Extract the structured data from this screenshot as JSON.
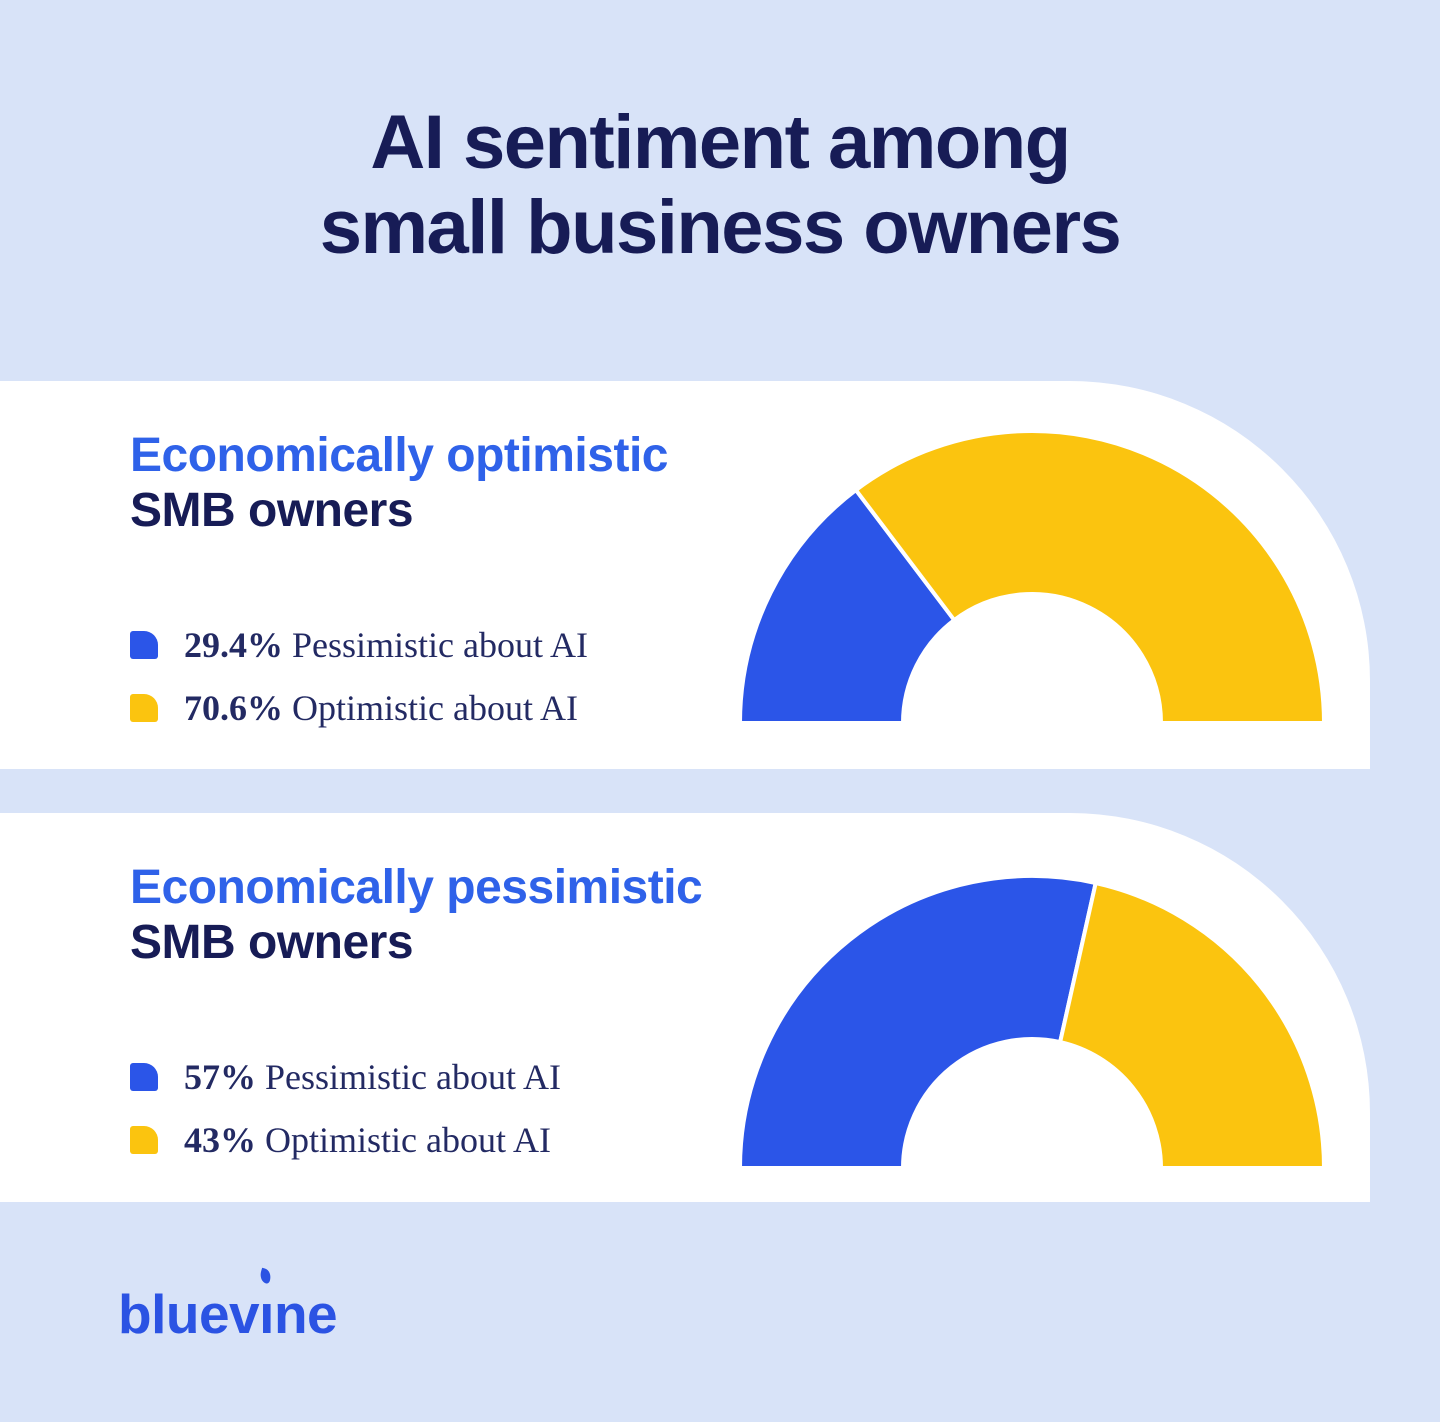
{
  "page": {
    "title_line1": "AI sentiment among",
    "title_line2": "small business owners"
  },
  "colors": {
    "background": "#d8e3f8",
    "card": "#ffffff",
    "navy": "#171c56",
    "legend_text": "#232a63",
    "heading_accent_blue": "#2f62e9",
    "brand_blue": "#2b55e8",
    "brand_yellow": "#fbc40f",
    "logo_blue": "#2b53e3"
  },
  "cards": [
    {
      "heading_accent": "Economically optimistic",
      "heading_rest": "SMB owners",
      "legend": [
        {
          "value": "29.4%",
          "label": "Pessimistic about AI",
          "color": "#2b55e8"
        },
        {
          "value": "70.6%",
          "label": "Optimistic about AI",
          "color": "#fbc40f"
        }
      ]
    },
    {
      "heading_accent": "Economically pessimistic",
      "heading_rest": "SMB owners",
      "legend": [
        {
          "value": "57%",
          "label": "Pessimistic about AI",
          "color": "#2b55e8"
        },
        {
          "value": "43%",
          "label": "Optimistic about AI",
          "color": "#fbc40f"
        }
      ]
    }
  ],
  "chart_data": [
    {
      "type": "pie",
      "variant": "half-donut-gauge",
      "title": "Economically optimistic SMB owners",
      "start_angle_deg": 180,
      "end_angle_deg": 0,
      "inner_to_outer_ratio": 0.44,
      "slices": [
        {
          "label": "Pessimistic about AI",
          "value": 29.4,
          "color": "#2b55e8"
        },
        {
          "label": "Optimistic about AI",
          "value": 70.6,
          "color": "#fbc40f"
        }
      ]
    },
    {
      "type": "pie",
      "variant": "half-donut-gauge",
      "title": "Economically pessimistic SMB owners",
      "start_angle_deg": 180,
      "end_angle_deg": 0,
      "inner_to_outer_ratio": 0.44,
      "slices": [
        {
          "label": "Pessimistic about AI",
          "value": 57,
          "color": "#2b55e8"
        },
        {
          "label": "Optimistic about AI",
          "value": 43,
          "color": "#fbc40f"
        }
      ]
    }
  ],
  "footer": {
    "logo_text": "bluevine",
    "logo_part1": "bluev",
    "logo_part2": "ne"
  }
}
